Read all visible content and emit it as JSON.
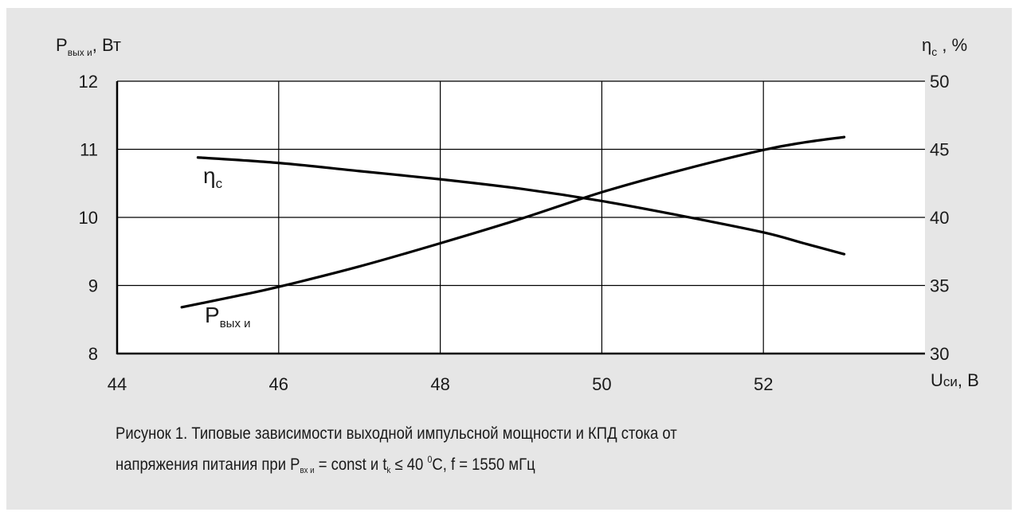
{
  "chart_data": {
    "type": "line",
    "x_axis": {
      "label": "Uси, В",
      "label_main": "U",
      "label_sub": "си",
      "label_unit": ", В",
      "min": 44,
      "max": 54,
      "ticks": [
        44,
        46,
        48,
        50,
        52
      ]
    },
    "y_axis_left": {
      "label_main": "P",
      "label_sub": "вых и",
      "label_unit": ", Вт",
      "min": 8,
      "max": 12,
      "ticks": [
        8,
        9,
        10,
        11,
        12
      ]
    },
    "y_axis_right": {
      "label_main": "η",
      "label_sub": "с",
      "label_unit": " , %",
      "min": 30,
      "max": 50,
      "ticks": [
        30,
        35,
        40,
        45,
        50
      ]
    },
    "grid": true,
    "series": [
      {
        "name": "Pвых и",
        "label_main": "P",
        "label_sub": "вых и",
        "axis": "left",
        "x": [
          44.8,
          45.5,
          46.0,
          47.0,
          48.0,
          49.0,
          50.0,
          51.0,
          52.0,
          52.5,
          53.0
        ],
        "y": [
          8.68,
          8.85,
          8.98,
          9.28,
          9.62,
          9.98,
          10.37,
          10.7,
          10.99,
          11.1,
          11.18
        ],
        "color": "#000000"
      },
      {
        "name": "ηс",
        "label_main": "η",
        "label_sub": "с",
        "axis": "right",
        "x": [
          45.0,
          46.0,
          47.0,
          48.0,
          49.0,
          50.0,
          51.0,
          52.0,
          52.5,
          53.0
        ],
        "y": [
          44.4,
          44.0,
          43.4,
          42.8,
          42.1,
          41.2,
          40.1,
          38.9,
          38.1,
          37.3
        ],
        "color": "#000000"
      }
    ]
  },
  "caption": {
    "line1": "Рисунок 1. Типовые зависимости выходной импульсной мощности и КПД стока от",
    "line2_prefix": "напряжения питания при P",
    "line2_sub1": "вх и",
    "line2_mid": " =  const  и  t",
    "line2_sub2": "k",
    "line2_mid2": " ≤ 40 ",
    "line2_sup": "0",
    "line2_suffix": "C, f = 1550 мГц"
  }
}
